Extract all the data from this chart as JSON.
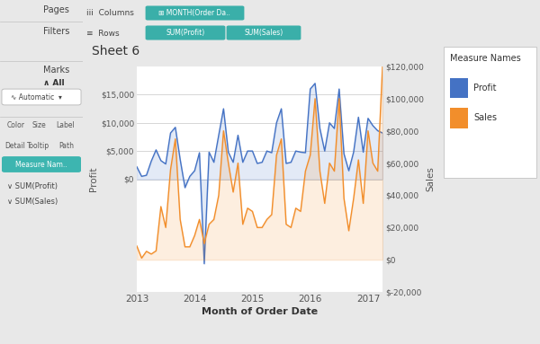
{
  "title": "Sheet 6",
  "xlabel": "Month of Order Date",
  "ylabel_left": "Profit",
  "ylabel_right": "Sales",
  "legend_title": "Measure Names",
  "legend_items": [
    "Profit",
    "Sales"
  ],
  "profit_color": "#4472C4",
  "sales_color": "#F28E2B",
  "background_color": "#e8e8e8",
  "plot_bg_color": "#ffffff",
  "sidebar_bg": "#e8e8e8",
  "header_bg": "#e8e8e8",
  "chart_area_bg": "#f5f5f5",
  "grid_color": "#d0d0d0",
  "left_ylim": [
    -20000,
    20000
  ],
  "right_ylim": [
    -20000,
    120000
  ],
  "left_yticks": [
    0,
    5000,
    10000,
    15000
  ],
  "right_yticks": [
    -20000,
    0,
    20000,
    40000,
    60000,
    80000,
    100000,
    120000
  ],
  "profit": [
    2200,
    500,
    700,
    3200,
    5200,
    3300,
    2700,
    8200,
    9200,
    3500,
    -1500,
    500,
    1500,
    4700,
    -15000,
    4800,
    3000,
    7800,
    12500,
    4800,
    3000,
    7800,
    3000,
    5000,
    5000,
    2800,
    3000,
    5000,
    4700,
    10000,
    12500,
    2800,
    3000,
    5000,
    4800,
    4700,
    16000,
    17000,
    9000,
    5000,
    10000,
    9000,
    16000,
    4500,
    1500,
    4800,
    11000,
    4800,
    10800,
    9500,
    8600,
    8200
  ],
  "sales": [
    8500,
    1000,
    5200,
    3500,
    5500,
    33000,
    20000,
    56000,
    75000,
    25000,
    8000,
    8000,
    15000,
    25000,
    10000,
    22000,
    25000,
    40000,
    80000,
    60000,
    42000,
    60000,
    22000,
    32000,
    30000,
    20000,
    20000,
    25000,
    28000,
    65000,
    75000,
    22000,
    20000,
    32000,
    30000,
    55000,
    65000,
    100000,
    55000,
    35000,
    60000,
    55000,
    100000,
    38000,
    18000,
    38000,
    62000,
    35000,
    80000,
    60000,
    55000,
    120000
  ],
  "xtick_positions": [
    0,
    12,
    24,
    36,
    48
  ],
  "xtick_labels": [
    "2013",
    "2014",
    "2015",
    "2016",
    "2017"
  ],
  "pill_color": "#3aafa9",
  "pill_text_color": "#ffffff"
}
